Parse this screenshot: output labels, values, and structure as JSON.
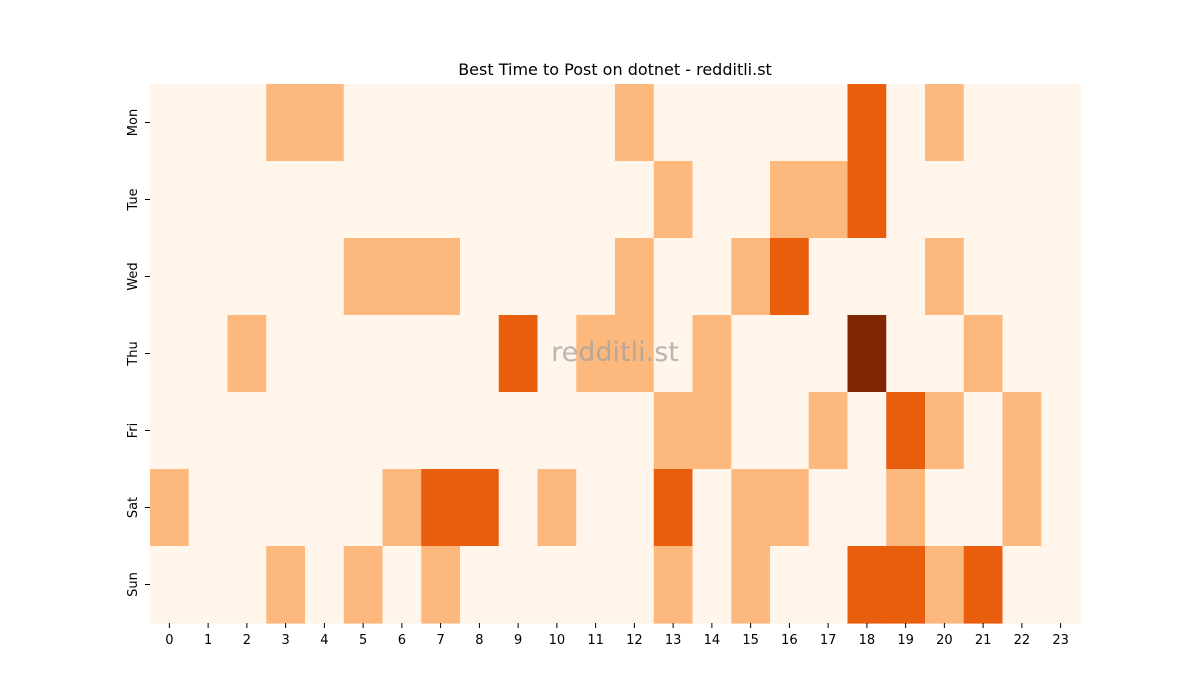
{
  "chart_data": {
    "type": "heatmap",
    "title": "Best Time to Post on dotnet - redditli.st",
    "watermark": "redditli.st",
    "x": [
      "0",
      "1",
      "2",
      "3",
      "4",
      "5",
      "6",
      "7",
      "8",
      "9",
      "10",
      "11",
      "12",
      "13",
      "14",
      "15",
      "16",
      "17",
      "18",
      "19",
      "20",
      "21",
      "22",
      "23"
    ],
    "y": [
      "Mon",
      "Tue",
      "Wed",
      "Thu",
      "Fri",
      "Sat",
      "Sun"
    ],
    "values": [
      [
        0,
        0,
        0,
        1,
        1,
        0,
        0,
        0,
        0,
        0,
        0,
        0,
        1,
        0,
        0,
        0,
        0,
        0,
        2,
        0,
        1,
        0,
        0,
        0
      ],
      [
        0,
        0,
        0,
        0,
        0,
        0,
        0,
        0,
        0,
        0,
        0,
        0,
        0,
        1,
        0,
        0,
        1,
        1,
        2,
        0,
        0,
        0,
        0,
        0
      ],
      [
        0,
        0,
        0,
        0,
        0,
        1,
        1,
        1,
        0,
        0,
        0,
        0,
        1,
        0,
        0,
        1,
        2,
        0,
        0,
        0,
        1,
        0,
        0,
        0
      ],
      [
        0,
        0,
        1,
        0,
        0,
        0,
        0,
        0,
        0,
        2,
        0,
        1,
        1,
        0,
        1,
        0,
        0,
        0,
        3,
        0,
        0,
        1,
        0,
        0
      ],
      [
        0,
        0,
        0,
        0,
        0,
        0,
        0,
        0,
        0,
        0,
        0,
        0,
        0,
        1,
        1,
        0,
        0,
        1,
        0,
        2,
        1,
        0,
        1,
        0
      ],
      [
        1,
        0,
        0,
        0,
        0,
        0,
        1,
        2,
        2,
        0,
        1,
        0,
        0,
        2,
        0,
        1,
        1,
        0,
        0,
        1,
        0,
        0,
        1,
        0
      ],
      [
        0,
        0,
        0,
        1,
        0,
        1,
        0,
        1,
        0,
        0,
        0,
        0,
        0,
        1,
        0,
        1,
        0,
        0,
        2,
        2,
        1,
        2,
        0,
        0
      ]
    ],
    "colors": [
      "#fff5eb",
      "#fdb97d",
      "#e95e0d",
      "#7f2704"
    ],
    "colorbar": false,
    "grid": false
  }
}
